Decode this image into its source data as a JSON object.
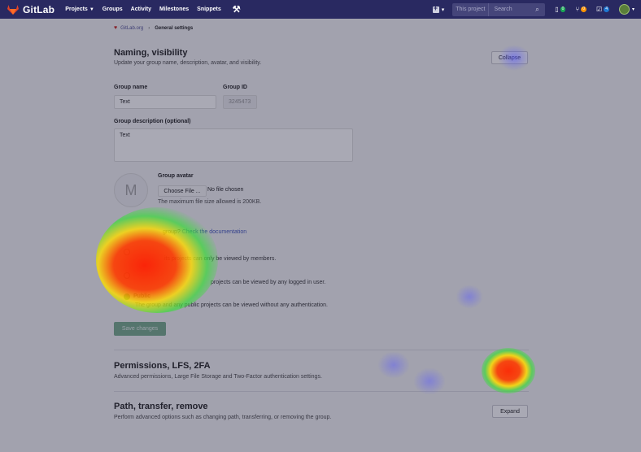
{
  "nav": {
    "brand": "GitLab",
    "links": [
      "Projects",
      "Groups",
      "Activity",
      "Milestones",
      "Snippets"
    ],
    "search_scope": "This project",
    "search_placeholder": "Search",
    "issues_count": "0",
    "mr_count": "0",
    "todos_count": "4",
    "colors": {
      "bar": "#292961",
      "issues": "#1aaa55",
      "mr": "#fc9403",
      "todos": "#1f78d1"
    }
  },
  "breadcrumb": {
    "group": "GitLab.org",
    "current": "General settings"
  },
  "naming": {
    "title": "Naming, visibility",
    "description": "Update your group name, description, avatar, and visibility.",
    "collapse_label": "Collapse",
    "group_name_label": "Group name",
    "group_name_value": "Text",
    "group_id_label": "Group ID",
    "group_id_value": "3245473",
    "description_label": "Group description (optional)",
    "description_value": "Text",
    "avatar_label": "Group avatar",
    "avatar_letter": "M",
    "choose_file_label": "Choose File ...",
    "no_file_label": "No file chosen",
    "file_help": "The maximum file size allowed is 200KB.",
    "visibility_help_prefix": "group?",
    "visibility_help_link": "Check the documentation",
    "private_desc": "its projects can only be viewed by members.",
    "internal_desc": "projects can be viewed by any logged in user.",
    "public_title": "Public",
    "public_desc": "The group and any public projects can be viewed without any authentication.",
    "save_label": "Save changes"
  },
  "permissions": {
    "title": "Permissions, LFS, 2FA",
    "description": "Advanced permissions, Large File Storage and Two-Factor authentication settings."
  },
  "path": {
    "title": "Path, transfer, remove",
    "description": "Perform advanced options such as changing path, transferring, or removing the group.",
    "expand_label": "Expand"
  }
}
